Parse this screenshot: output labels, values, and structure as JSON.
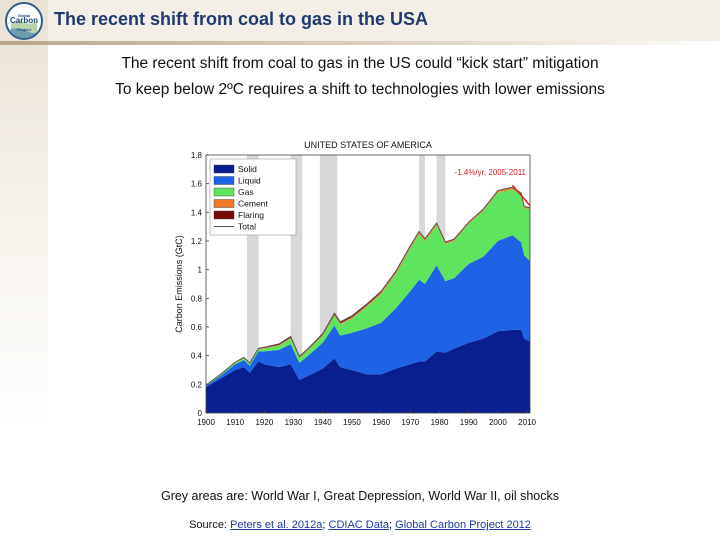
{
  "header": {
    "title": "The recent shift from coal to gas in the USA",
    "logo_text": [
      "Global",
      "Carbon",
      "Project"
    ]
  },
  "subtitles": [
    "The recent shift from coal to gas in the US could “kick start” mitigation",
    "To keep below 2ºC requires a shift to technologies with lower emissions"
  ],
  "caption": "Grey areas are: World War I, Great Depression, World War II, oil shocks",
  "source": {
    "prefix": "Source: ",
    "links": [
      "Peters et al. 2012a",
      "CDIAC Data",
      "Global Carbon Project 2012"
    ],
    "separator": "; "
  },
  "colors": {
    "solid": "#0a1f8f",
    "liquid": "#1e63e6",
    "gas": "#5fe45f",
    "cement": "#f07a2a",
    "flaring": "#7a0a0a",
    "total": "#555555",
    "trend": "#e02020",
    "shade": "#d8d8d8",
    "title_blue": "#1f3a6e"
  },
  "chart_data": {
    "type": "area",
    "title": "UNITED STATES OF AMERICA",
    "xlabel": "",
    "ylabel": "Carbon Emissions (GtC)",
    "xlim": [
      1900,
      2011
    ],
    "ylim": [
      0,
      1.8
    ],
    "xticks": [
      1900,
      1910,
      1920,
      1930,
      1940,
      1950,
      1960,
      1970,
      1980,
      1990,
      2000,
      2010
    ],
    "yticks": [
      0,
      0.2,
      0.4,
      0.6,
      0.8,
      1,
      1.2,
      1.4,
      1.6,
      1.8
    ],
    "ytick_labels": [
      "0",
      "0.2",
      "0.4",
      "0.6",
      "0.8",
      "1",
      "1.2",
      "1.4",
      "1.6",
      "1.8"
    ],
    "shaded_periods": [
      {
        "label": "World War I",
        "range": [
          1914,
          1918
        ]
      },
      {
        "label": "Great Depression",
        "range": [
          1929,
          1933
        ]
      },
      {
        "label": "World War II",
        "range": [
          1939,
          1945
        ]
      },
      {
        "label": "Oil shock",
        "range": [
          1973,
          1975
        ]
      },
      {
        "label": "Oil shock",
        "range": [
          1979,
          1982
        ]
      }
    ],
    "annotation": {
      "text": "-1.4%/yr, 2005-2011",
      "year_range": [
        2005,
        2011
      ]
    },
    "legend": {
      "position": "top-left",
      "entries": [
        {
          "name": "Solid",
          "color_key": "solid",
          "kind": "box"
        },
        {
          "name": "Liquid",
          "color_key": "liquid",
          "kind": "box"
        },
        {
          "name": "Gas",
          "color_key": "gas",
          "kind": "box"
        },
        {
          "name": "Cement",
          "color_key": "cement",
          "kind": "box"
        },
        {
          "name": "Flaring",
          "color_key": "flaring",
          "kind": "box"
        },
        {
          "name": "Total",
          "color_key": "total",
          "kind": "line"
        }
      ]
    },
    "x": [
      1900,
      1905,
      1910,
      1913,
      1915,
      1918,
      1920,
      1925,
      1929,
      1932,
      1935,
      1940,
      1944,
      1946,
      1950,
      1955,
      1960,
      1965,
      1970,
      1973,
      1975,
      1979,
      1982,
      1985,
      1990,
      1995,
      2000,
      2005,
      2008,
      2009,
      2011
    ],
    "series": [
      {
        "name": "Solid",
        "values": [
          0.18,
          0.24,
          0.3,
          0.32,
          0.28,
          0.36,
          0.34,
          0.32,
          0.34,
          0.23,
          0.26,
          0.31,
          0.38,
          0.32,
          0.3,
          0.27,
          0.27,
          0.31,
          0.34,
          0.36,
          0.36,
          0.43,
          0.42,
          0.45,
          0.49,
          0.52,
          0.57,
          0.58,
          0.58,
          0.52,
          0.5
        ]
      },
      {
        "name": "Liquid",
        "values": [
          0.01,
          0.02,
          0.04,
          0.05,
          0.05,
          0.07,
          0.09,
          0.12,
          0.14,
          0.12,
          0.14,
          0.18,
          0.23,
          0.22,
          0.26,
          0.32,
          0.36,
          0.42,
          0.51,
          0.57,
          0.54,
          0.6,
          0.5,
          0.49,
          0.55,
          0.57,
          0.63,
          0.66,
          0.61,
          0.58,
          0.56
        ]
      },
      {
        "name": "Gas",
        "values": [
          0.005,
          0.008,
          0.01,
          0.012,
          0.012,
          0.015,
          0.02,
          0.03,
          0.04,
          0.035,
          0.04,
          0.05,
          0.07,
          0.08,
          0.1,
          0.15,
          0.2,
          0.24,
          0.3,
          0.32,
          0.3,
          0.28,
          0.26,
          0.26,
          0.28,
          0.32,
          0.34,
          0.32,
          0.33,
          0.33,
          0.36
        ]
      },
      {
        "name": "Cement",
        "values": [
          0.001,
          0.002,
          0.003,
          0.003,
          0.003,
          0.003,
          0.004,
          0.005,
          0.006,
          0.004,
          0.004,
          0.006,
          0.006,
          0.006,
          0.008,
          0.01,
          0.011,
          0.012,
          0.012,
          0.013,
          0.011,
          0.012,
          0.01,
          0.011,
          0.009,
          0.01,
          0.011,
          0.013,
          0.01,
          0.008,
          0.009
        ]
      },
      {
        "name": "Flaring",
        "values": [
          0,
          0,
          0.002,
          0.003,
          0.003,
          0.004,
          0.005,
          0.007,
          0.008,
          0.006,
          0.006,
          0.008,
          0.01,
          0.01,
          0.01,
          0.009,
          0.008,
          0.006,
          0.005,
          0.004,
          0.004,
          0.003,
          0.003,
          0.002,
          0.002,
          0.002,
          0.002,
          0.002,
          0.003,
          0.003,
          0.004
        ]
      }
    ]
  }
}
